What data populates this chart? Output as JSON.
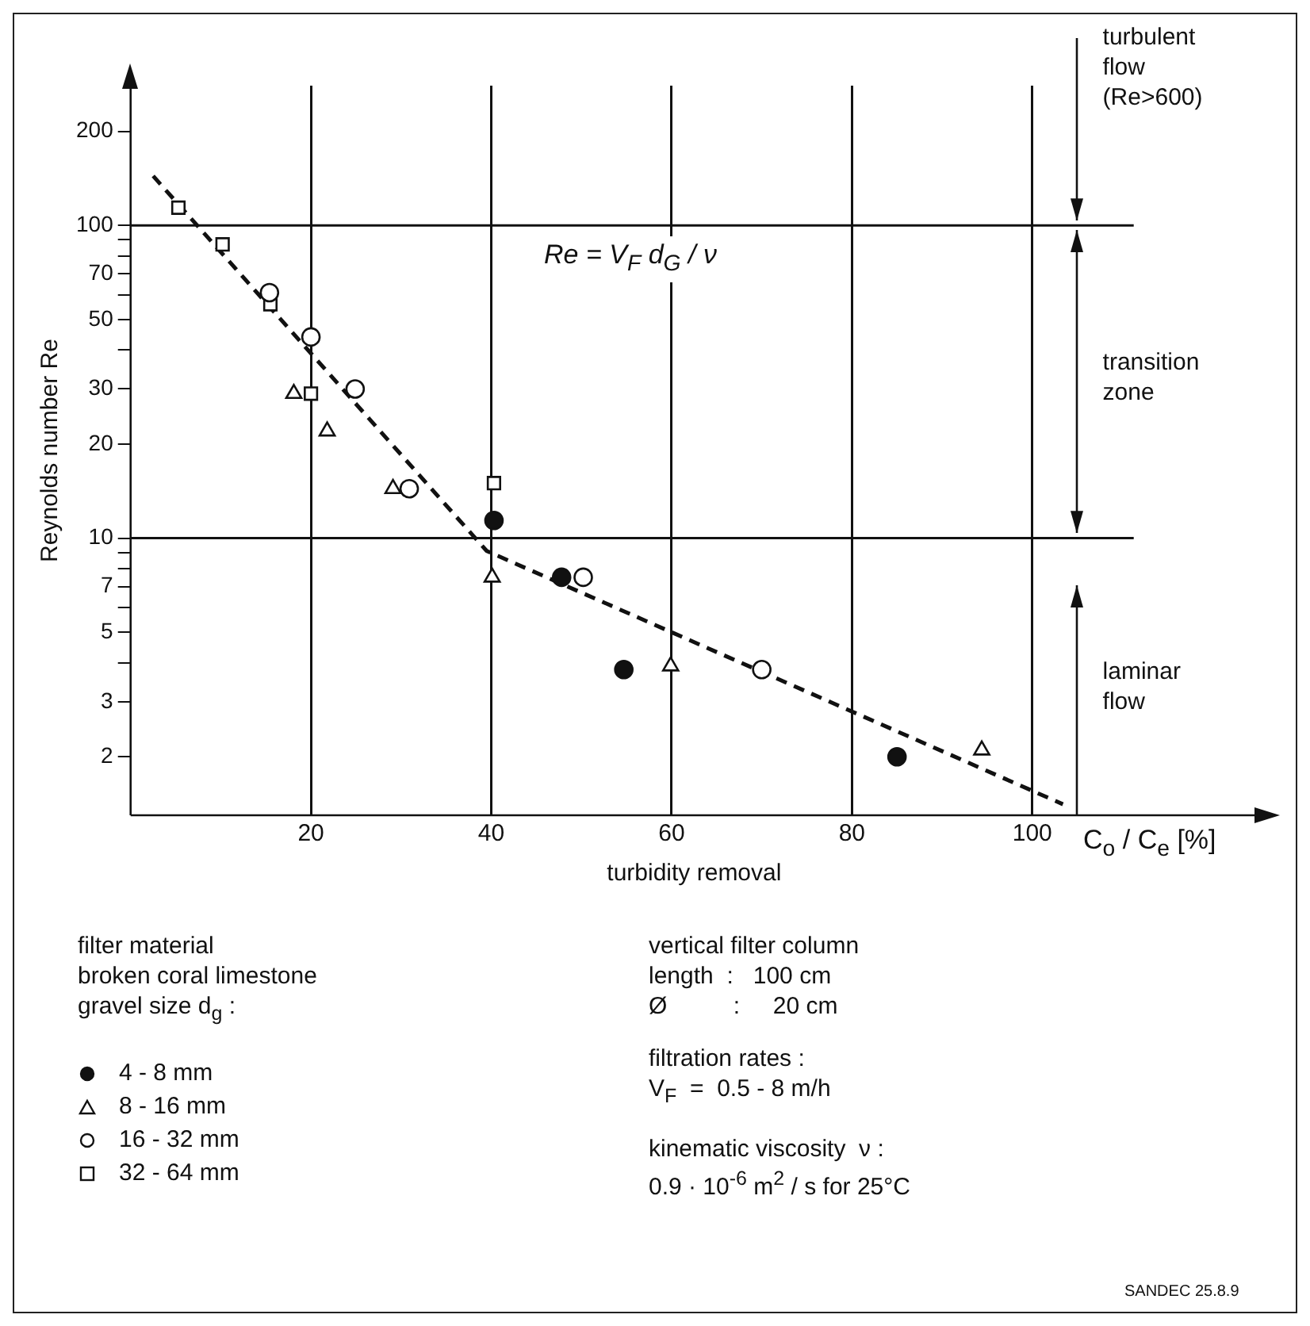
{
  "chart_data": {
    "type": "scatter",
    "xlabel": "turbidity removal",
    "ylabel": "Reynolds number Re",
    "legend_title": "filter material\nbroken coral limestone\ngravel size d$_{g}$ :",
    "legend": "bottom left",
    "log": "y",
    "grid": "x",
    "xlim": [
      0,
      125
    ],
    "xticks": [
      20,
      40,
      60,
      80,
      100
    ],
    "ylim": [
      1.3,
      280
    ],
    "yticks": [
      2,
      3,
      {
        "value": 4,
        "label": null
      },
      5,
      {
        "value": 6,
        "label": null
      },
      7,
      {
        "value": 8,
        "label": null
      },
      {
        "value": 9,
        "label": null
      },
      10,
      20,
      30,
      {
        "value": 40,
        "label": null
      },
      50,
      {
        "value": 60,
        "label": null
      },
      70,
      {
        "value": 80,
        "label": null
      },
      {
        "value": 90,
        "label": null
      },
      100,
      200
    ],
    "ref_lines": [
      {
        "axis": "y",
        "value": 10,
        "color": "#111111"
      },
      {
        "axis": "y",
        "value": 100,
        "color": "#111111"
      }
    ],
    "annotations": [
      "Re = V$_{F}$ d$_{G}$ / ν",
      {
        "text": "turbulent\nflow\n(Re>600)",
        "x": 105,
        "y": 100
      },
      "transition\nzone",
      "laminar\nflow",
      "C$_{o}$ / C$_{e}$ [%]",
      "vertical filter column",
      "length  :   100 cm",
      "Ø          :     20 cm",
      "filtration rates :",
      "V$_{F}$  =  0.5 - 8 m/h",
      "kinematic viscosity  ν :",
      "0.9 · 10$^{-6}$ m$^{2}$ / s for 25°C",
      "SANDEC 25.8.9"
    ],
    "series": [
      {
        "name": "4 - 8   mm",
        "color": "#111111",
        "marker": "circle",
        "x": [
          40.3,
          47.8,
          54.7,
          85.0
        ],
        "values": [
          11.4,
          7.5,
          3.8,
          2.0
        ]
      },
      {
        "name": "8 - 16  mm",
        "color": "#ffffff",
        "marker": "triangle",
        "x": [
          18.1,
          21.8,
          29.1,
          40.1,
          59.9,
          94.4
        ],
        "values": [
          29,
          22,
          14.4,
          7.5,
          3.9,
          2.1
        ]
      },
      {
        "name": "16 - 32  mm",
        "color": "#ffffff",
        "marker": "circle",
        "x": [
          15.4,
          20,
          24.9,
          30.9,
          50.2,
          70.0
        ],
        "values": [
          61,
          44,
          30,
          14.4,
          7.5,
          3.8
        ]
      },
      {
        "name": "32 - 64  mm",
        "color": "#ffffff",
        "marker": "square",
        "x": [
          5.3,
          10.2,
          15.5,
          20,
          40.3
        ],
        "values": [
          114,
          87,
          56,
          29,
          15
        ]
      },
      {
        "type": "line",
        "line_style": "dashed",
        "color": "#111111",
        "x": [
          2.5,
          39.5,
          103.4
        ],
        "values": [
          144,
          9.1,
          1.41
        ]
      }
    ]
  }
}
